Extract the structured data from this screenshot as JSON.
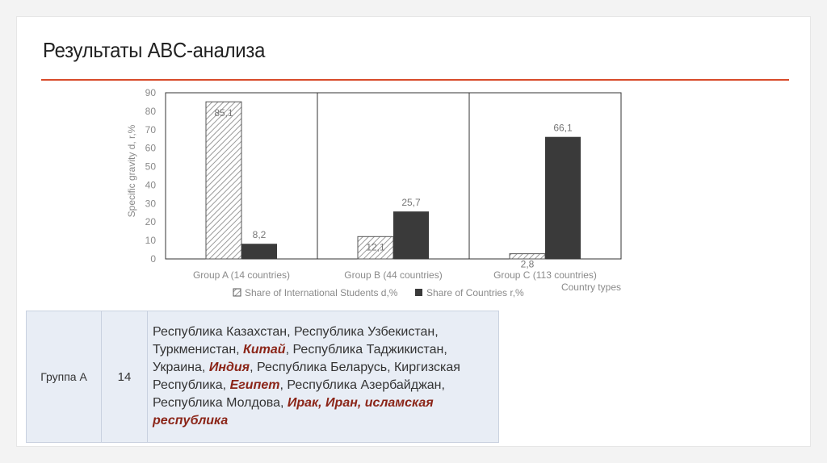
{
  "slide": {
    "title": "Результаты ABC-анализа"
  },
  "chart_data": {
    "type": "bar",
    "categories": [
      "Group A (14 countries)",
      "Group B (44 countries)",
      "Group C (113 countries)"
    ],
    "series": [
      {
        "name": "Share of International Students d,%",
        "values": [
          85.1,
          12.1,
          2.8
        ],
        "labels": [
          "85,1",
          "12,1",
          "2,8"
        ],
        "pattern": "hatched"
      },
      {
        "name": "Share of Countries r,%",
        "values": [
          8.2,
          25.7,
          66.1
        ],
        "labels": [
          "8,2",
          "25,7",
          "66,1"
        ],
        "color": "#3a3a3a"
      }
    ],
    "ylim": [
      0,
      90
    ],
    "yticks": [
      0,
      10,
      20,
      30,
      40,
      50,
      60,
      70,
      80,
      90
    ],
    "ylabel": "Specific gravity d, r,%",
    "xlabel": "Country types",
    "legend_position": "bottom",
    "grid": false,
    "panel_borders": true
  },
  "table": {
    "group_label": "Группа А",
    "count": "14",
    "countries": [
      {
        "text": "Республика Казахстан, Республика Узбекистан, Туркменистан, ",
        "hl": false
      },
      {
        "text": "Китай",
        "hl": true
      },
      {
        "text": ", Республика Таджикистан, Украина, ",
        "hl": false
      },
      {
        "text": "Индия",
        "hl": true
      },
      {
        "text": ", Республика Беларусь, Киргизская Республика, ",
        "hl": false
      },
      {
        "text": "Египет",
        "hl": true
      },
      {
        "text": ", Республика Азербайджан, Республика Молдова, ",
        "hl": false
      },
      {
        "text": "Ирак, Иран, исламская республика",
        "hl": true
      }
    ]
  },
  "colors": {
    "accent_rule": "#d84b2a",
    "highlight_text": "#8b2518",
    "dark_bar": "#3a3a3a"
  }
}
